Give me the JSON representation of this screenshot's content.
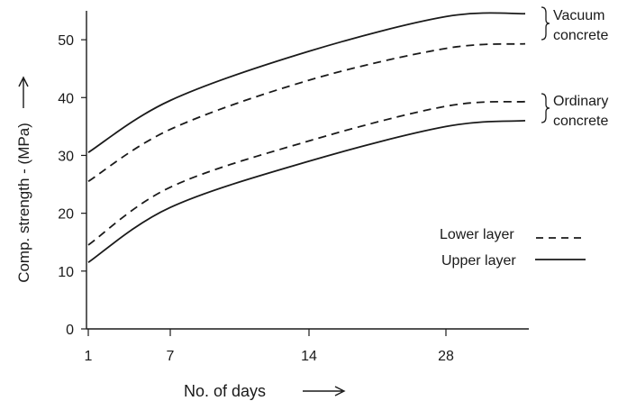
{
  "chart_data": {
    "type": "line",
    "xlabel": "No. of days",
    "ylabel": "Comp. strength - (MPa)",
    "x_ticks": [
      {
        "value": 1,
        "label": "1"
      },
      {
        "value": 7,
        "label": "7"
      },
      {
        "value": 14,
        "label": "14"
      },
      {
        "value": 28,
        "label": "28"
      }
    ],
    "y_ticks": [
      0,
      10,
      20,
      30,
      40,
      50
    ],
    "ylim": [
      0,
      55
    ],
    "x_categories": [
      "1",
      "7",
      "14",
      "28"
    ],
    "series": [
      {
        "group": "vacuum",
        "style": "solid",
        "values": [
          [
            1,
            30.5
          ],
          [
            7,
            39.5
          ],
          [
            14,
            48
          ],
          [
            28,
            54
          ],
          [
            32,
            54.5
          ]
        ]
      },
      {
        "group": "vacuum",
        "style": "dashed",
        "values": [
          [
            1,
            25.5
          ],
          [
            7,
            34.5
          ],
          [
            14,
            43
          ],
          [
            28,
            48.5
          ],
          [
            32,
            49.3
          ]
        ]
      },
      {
        "group": "ordinary",
        "style": "dashed",
        "values": [
          [
            1,
            14.5
          ],
          [
            7,
            24.5
          ],
          [
            14,
            32.5
          ],
          [
            28,
            38.5
          ],
          [
            32,
            39.3
          ]
        ]
      },
      {
        "group": "ordinary",
        "style": "solid",
        "values": [
          [
            1,
            11.5
          ],
          [
            7,
            21
          ],
          [
            14,
            29
          ],
          [
            28,
            35
          ],
          [
            32,
            36
          ]
        ]
      }
    ],
    "annotations": {
      "vacuum": [
        "Vacuum",
        "concrete"
      ],
      "ordinary": [
        "Ordinary",
        "concrete"
      ]
    },
    "legend": {
      "placement": "lower-right",
      "entries": [
        {
          "label": "Lower layer",
          "style": "dashed"
        },
        {
          "label": "Upper layer",
          "style": "solid"
        }
      ]
    },
    "grid": false,
    "colors": {
      "line": "#1a1a1a",
      "axis": "#1a1a1a"
    }
  }
}
